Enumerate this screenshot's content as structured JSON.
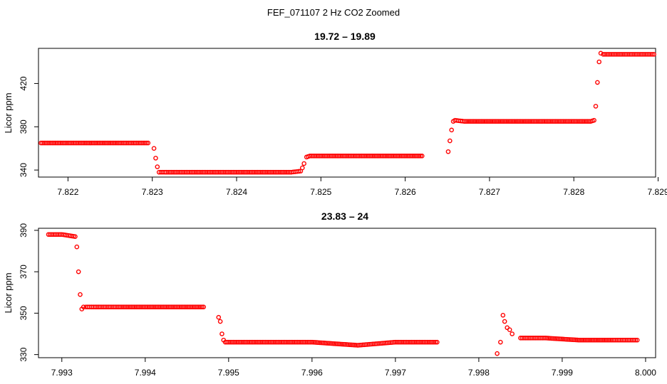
{
  "figure": {
    "title": "FEF_071107  2 Hz CO2 Zoomed"
  },
  "colors": {
    "points": "#ff0000",
    "axes": "#000000",
    "background": "#ffffff"
  },
  "chart_data": [
    {
      "type": "scatter",
      "title": "19.72 – 19.89",
      "xlabel": "",
      "ylabel": "Licor ppm",
      "xlim": [
        7.82165,
        7.82897
      ],
      "ylim": [
        333.5,
        452.5
      ],
      "xticks": [
        7.822,
        7.823,
        7.824,
        7.825,
        7.826,
        7.827,
        7.828,
        7.829
      ],
      "xtick_labels": [
        "7.822",
        "7.823",
        "7.824",
        "7.825",
        "7.826",
        "7.827",
        "7.828",
        "7.829"
      ],
      "yticks": [
        340,
        380,
        420
      ],
      "ytick_labels": [
        "340",
        "380",
        "420"
      ],
      "grid": false,
      "marker": "open-circle",
      "series": [
        {
          "x": [
            7.82168,
            7.8222,
            7.8226,
            7.82295,
            7.82302,
            7.82304,
            7.82306,
            7.82308,
            7.82315,
            7.8235,
            7.824,
            7.82465,
            7.82476,
            7.82478,
            7.8248,
            7.82483,
            7.82487,
            7.8255,
            7.8262,
            7.82651,
            7.82653,
            7.82655,
            7.82657,
            7.82659,
            7.8267,
            7.8275,
            7.8282,
            7.82824,
            7.82826,
            7.82828,
            7.8283,
            7.82832,
            7.82835,
            7.8286,
            7.82895
          ],
          "y": [
            365,
            365,
            365,
            365,
            360,
            351,
            343,
            338,
            338,
            338,
            338,
            338,
            339,
            342,
            346,
            352,
            353,
            353,
            353,
            357,
            367,
            377,
            385,
            386,
            385,
            385,
            385,
            386,
            399,
            421,
            440,
            448,
            447,
            447,
            447
          ]
        }
      ]
    },
    {
      "type": "scatter",
      "title": "23.83 – 24",
      "xlabel": "",
      "ylabel": "Licor ppm",
      "xlim": [
        7.99272,
        8.00012
      ],
      "ylim": [
        328.5,
        391.0
      ],
      "xticks": [
        7.993,
        7.994,
        7.995,
        7.996,
        7.997,
        7.998,
        7.999,
        8.0
      ],
      "xtick_labels": [
        "7.993",
        "7.994",
        "7.995",
        "7.996",
        "7.997",
        "7.998",
        "7.999",
        "8.000"
      ],
      "yticks": [
        330,
        350,
        370,
        390
      ],
      "ytick_labels": [
        "330",
        "350",
        "370",
        "390"
      ],
      "grid": false,
      "marker": "open-circle",
      "series": [
        {
          "x": [
            7.99284,
            7.993,
            7.99316,
            7.99318,
            7.9932,
            7.99322,
            7.99324,
            7.99326,
            7.99329,
            7.9934,
            7.9937,
            7.9942,
            7.9947,
            7.99488,
            7.9949,
            7.99492,
            7.99494,
            7.99496,
            7.995,
            7.9955,
            7.996,
            7.99655,
            7.997,
            7.9975,
            7.99822,
            7.99826,
            7.99829,
            7.99831,
            7.99834,
            7.99837,
            7.9984,
            7.9985,
            7.9988,
            7.9992,
            7.9996,
            7.9999
          ],
          "y": [
            388,
            388,
            387,
            382,
            370,
            359,
            352,
            353,
            353,
            353,
            353,
            353,
            353,
            348,
            346,
            340,
            337,
            336,
            336,
            336,
            336,
            334.5,
            336,
            336,
            330.5,
            336,
            349,
            346,
            343,
            342,
            340,
            338,
            338,
            337,
            337,
            337
          ]
        }
      ]
    }
  ]
}
